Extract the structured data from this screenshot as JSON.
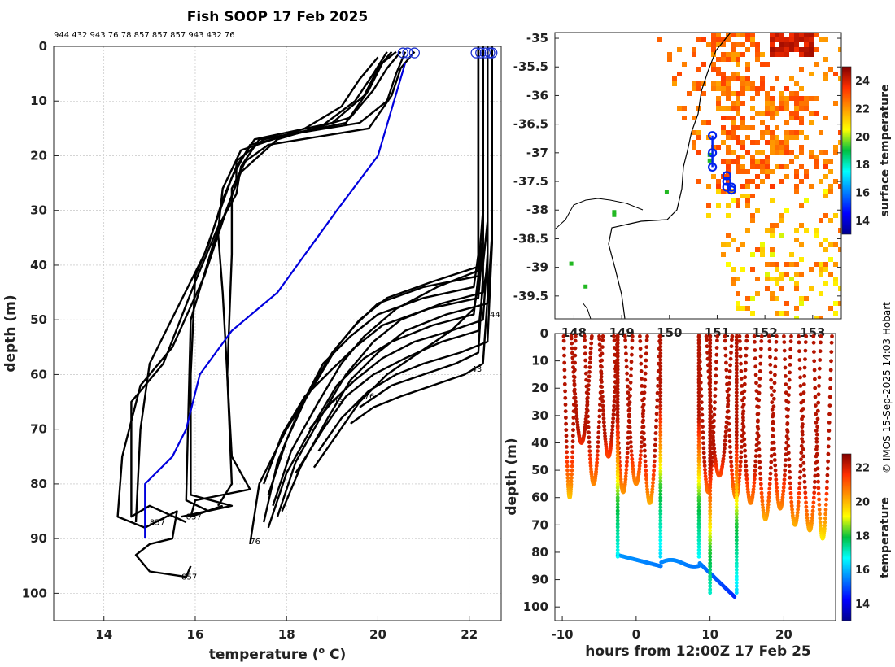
{
  "chart_data": [
    {
      "type": "line",
      "title": "Fish SOOP 17 Feb 2025",
      "top_ids": "944 432 943 76 78 857 857 857 943 432 76",
      "xlabel": "temperature (° C)",
      "xlabel_prefix": "temperature (",
      "xlabel_degree": "o",
      "xlabel_suffix": " C)",
      "ylabel": "depth (m)",
      "xlim": [
        12.9,
        22.7
      ],
      "ylim": [
        105,
        0
      ],
      "xticks": [
        14,
        16,
        18,
        20,
        22
      ],
      "yticks": [
        0,
        10,
        20,
        30,
        40,
        50,
        60,
        70,
        80,
        90,
        100
      ],
      "profile_labels": [
        {
          "text": "857",
          "t": 15.0,
          "d": 87.5
        },
        {
          "text": "857",
          "t": 15.8,
          "d": 86.5
        },
        {
          "text": "857",
          "t": 15.7,
          "d": 97.5
        },
        {
          "text": "76",
          "t": 17.2,
          "d": 91.0
        },
        {
          "text": "943",
          "t": 18.9,
          "d": 65.5
        },
        {
          "text": "76",
          "t": 19.7,
          "d": 64.5
        },
        {
          "text": "43",
          "t": 22.05,
          "d": 59.5
        },
        {
          "text": "44",
          "t": 22.45,
          "d": 49.5
        }
      ],
      "climatology": {
        "name": "climatology",
        "color": "#0000dd",
        "temp": [
          20.6,
          20.0,
          19.1,
          17.8,
          16.8,
          16.1,
          15.8,
          15.5,
          14.9,
          14.9
        ],
        "depth": [
          3,
          20,
          30,
          45,
          52,
          60,
          70,
          75,
          80,
          90
        ]
      },
      "series": [
        {
          "name": "cool-profile-a",
          "temp": [
            20.4,
            20.1,
            19.8,
            19.3,
            17.5,
            16.9,
            16.9,
            16.6,
            16.2,
            15.5,
            14.8,
            14.4,
            14.3,
            14.9,
            15.6,
            15.5,
            15.0,
            14.7,
            15.0,
            15.8,
            15.9
          ],
          "depth": [
            1,
            3,
            8,
            14,
            17,
            21,
            25,
            32,
            42,
            55,
            62,
            75,
            86,
            88,
            85,
            90,
            91,
            93,
            96,
            97,
            95
          ]
        },
        {
          "name": "cool-profile-b",
          "temp": [
            20.6,
            20.4,
            20.2,
            19.6,
            17.4,
            17.0,
            16.9,
            16.5,
            16.0,
            15.3,
            14.6,
            14.6,
            15.0,
            15.8
          ],
          "depth": [
            1,
            5,
            10,
            14,
            17,
            22,
            27,
            33,
            43,
            58,
            65,
            86,
            84,
            87
          ]
        },
        {
          "name": "cool-profile-c",
          "temp": [
            20.8,
            20.5,
            20.3,
            19.8,
            17.6,
            17.1,
            16.8,
            16.8,
            16.7,
            16.8,
            17.2,
            16.0,
            15.9,
            16.6
          ],
          "depth": [
            1,
            4,
            9,
            15,
            18,
            21,
            26,
            38,
            60,
            75,
            81,
            83,
            86,
            84
          ]
        },
        {
          "name": "cool-profile-d",
          "temp": [
            20.3,
            20.0,
            19.7,
            19.0,
            17.3,
            16.9,
            16.6,
            16.3,
            16.0,
            15.9,
            15.9,
            16.8,
            15.7
          ],
          "depth": [
            1,
            4,
            9,
            14,
            17,
            22,
            28,
            36,
            42,
            60,
            82,
            84,
            86
          ]
        },
        {
          "name": "cool-profile-e",
          "temp": [
            20.0,
            19.6,
            19.2,
            18.4,
            17.0,
            16.6,
            16.5,
            16.6,
            16.7,
            16.8,
            16.5
          ],
          "depth": [
            2,
            6,
            11,
            15,
            19,
            26,
            34,
            45,
            60,
            80,
            84
          ]
        },
        {
          "name": "cool-profile-f",
          "temp": [
            20.2,
            19.9,
            19.5,
            18.7,
            17.2,
            16.8,
            16.2,
            15.6,
            15.0,
            14.8,
            14.7
          ],
          "depth": [
            1,
            5,
            10,
            15,
            18,
            24,
            38,
            48,
            58,
            70,
            87
          ]
        },
        {
          "name": "cool-profile-g",
          "temp": [
            20.5,
            20.2,
            19.9,
            19.4,
            17.8,
            17.0,
            16.4,
            15.9,
            15.8,
            16.3
          ],
          "depth": [
            1,
            4,
            8,
            13,
            17,
            23,
            36,
            50,
            83,
            85
          ]
        },
        {
          "name": "warm-profile-a",
          "temp": [
            22.3,
            22.3,
            22.3,
            22.2,
            21.0,
            20.0,
            19.5,
            19.0,
            18.5,
            18.0,
            17.6
          ],
          "depth": [
            0,
            20,
            35,
            42,
            44,
            47,
            51,
            56,
            63,
            72,
            82
          ]
        },
        {
          "name": "warm-profile-b",
          "temp": [
            22.4,
            22.4,
            22.4,
            22.3,
            21.2,
            20.2,
            19.6,
            19.1,
            18.6,
            18.0,
            17.4,
            17.2
          ],
          "depth": [
            0,
            18,
            32,
            40,
            43,
            46,
            50,
            55,
            62,
            70,
            80,
            91
          ]
        },
        {
          "name": "warm-profile-c",
          "temp": [
            22.2,
            22.2,
            22.2,
            22.1,
            21.0,
            20.0,
            19.4,
            18.8,
            18.3,
            17.8,
            17.5
          ],
          "depth": [
            0,
            22,
            38,
            44,
            46,
            49,
            53,
            58,
            66,
            76,
            87
          ]
        },
        {
          "name": "warm-profile-d",
          "temp": [
            22.3,
            22.3,
            22.3,
            22.2,
            21.3,
            20.4,
            19.7,
            19.2,
            18.7,
            18.1,
            17.7
          ],
          "depth": [
            0,
            15,
            30,
            41,
            44,
            48,
            53,
            58,
            65,
            74,
            84
          ]
        },
        {
          "name": "warm-profile-e",
          "temp": [
            22.4,
            22.4,
            22.4,
            22.3,
            21.4,
            20.5,
            19.9,
            19.3,
            18.8,
            18.2,
            17.8
          ],
          "depth": [
            0,
            25,
            40,
            45,
            47,
            50,
            54,
            60,
            67,
            76,
            86
          ]
        },
        {
          "name": "warm-profile-f",
          "temp": [
            22.3,
            22.3,
            22.3,
            22.2,
            21.1,
            20.1,
            19.5,
            19.0,
            18.4,
            17.9,
            17.5
          ],
          "depth": [
            0,
            20,
            36,
            46,
            48,
            51,
            55,
            59,
            64,
            71,
            80
          ]
        },
        {
          "name": "warm-profile-g",
          "temp": [
            22.5,
            22.5,
            22.5,
            22.4,
            21.5,
            20.6,
            20.0,
            19.4,
            18.9,
            18.3,
            17.9
          ],
          "depth": [
            0,
            18,
            34,
            47,
            49,
            52,
            56,
            61,
            68,
            77,
            85
          ]
        },
        {
          "name": "warm-profile-h",
          "temp": [
            22.2,
            22.2,
            22.2,
            22.1,
            21.2,
            20.3,
            19.7,
            19.1,
            18.6,
            18.0,
            17.6
          ],
          "depth": [
            0,
            24,
            42,
            49,
            51,
            54,
            57,
            62,
            69,
            78,
            88
          ]
        },
        {
          "name": "warm-profile-i",
          "temp": [
            22.4,
            22.4,
            22.4,
            22.3,
            21.6,
            20.8,
            20.1,
            19.5,
            19.0,
            18.5
          ],
          "depth": [
            0,
            20,
            38,
            50,
            52,
            54,
            57,
            61,
            65,
            70
          ]
        },
        {
          "name": "warm-profile-j",
          "temp": [
            22.3,
            22.3,
            22.3,
            22.2,
            21.4,
            20.6,
            19.9,
            19.3,
            18.8,
            18.2
          ],
          "depth": [
            0,
            28,
            44,
            52,
            54,
            57,
            60,
            64,
            70,
            78
          ]
        },
        {
          "name": "warm-profile-k",
          "temp": [
            22.5,
            22.5,
            22.5,
            22.4,
            21.8,
            21.0,
            20.4,
            19.8,
            19.2,
            18.7
          ],
          "depth": [
            0,
            22,
            36,
            54,
            56,
            58,
            60,
            63,
            68,
            74
          ]
        },
        {
          "name": "warm-profile-l",
          "temp": [
            22.3,
            22.3,
            22.3,
            22.2,
            21.7,
            21.0,
            20.3,
            19.6
          ],
          "depth": [
            0,
            25,
            42,
            56,
            58,
            60,
            62,
            66
          ]
        },
        {
          "name": "warm-profile-m",
          "temp": [
            22.4,
            22.4,
            22.4,
            22.3,
            21.9,
            21.2,
            20.5,
            19.9,
            19.4
          ],
          "depth": [
            0,
            30,
            46,
            58,
            60,
            62,
            64,
            66,
            69
          ]
        },
        {
          "name": "warm-profile-n",
          "temp": [
            22.2,
            22.2,
            22.2,
            22.1,
            21.6,
            20.9,
            20.2,
            19.6,
            19.1,
            18.6
          ],
          "depth": [
            0,
            26,
            44,
            48,
            52,
            56,
            60,
            65,
            71,
            77
          ]
        }
      ]
    },
    {
      "type": "heatmap",
      "ylim": [
        -39.9,
        -34.9
      ],
      "xlim": [
        147.6,
        153.6
      ],
      "yticks": [
        -35,
        -35.5,
        -36,
        -36.5,
        -37,
        -37.5,
        -38,
        -38.5,
        -39,
        -39.5
      ],
      "ytick_labels": [
        "-35",
        "-35.5",
        "-36",
        "-36.5",
        "-37",
        "-37.5",
        "-38",
        "-38.5",
        "-39",
        "-39.5"
      ],
      "xticks": [
        148,
        149,
        150,
        151,
        152,
        153
      ],
      "xtick_labels": [
        "148",
        "149",
        "150",
        "151",
        "152",
        "153"
      ],
      "colorbar": {
        "label": "surface temperature",
        "min": 13.0,
        "max": 25.0,
        "ticks": [
          14,
          16,
          18,
          20,
          22,
          24
        ]
      },
      "track_points": [
        [
          150.9,
          -36.7
        ],
        [
          150.9,
          -37.0
        ],
        [
          150.9,
          -37.25
        ],
        [
          151.2,
          -37.4
        ],
        [
          151.2,
          -37.5
        ],
        [
          151.3,
          -37.6
        ],
        [
          151.2,
          -37.6
        ],
        [
          151.3,
          -37.65
        ]
      ]
    },
    {
      "type": "scatter",
      "xlabel": "hours from 12:00Z 17 Feb 25",
      "ylabel": "depth (m)",
      "xlim": [
        -11,
        27
      ],
      "ylim": [
        105,
        0
      ],
      "xticks": [
        -10,
        0,
        10,
        20
      ],
      "xtick_labels": [
        "-10",
        "0",
        "10",
        "20"
      ],
      "yticks": [
        0,
        10,
        20,
        30,
        40,
        50,
        60,
        70,
        80,
        90,
        100
      ],
      "colorbar": {
        "label": "temperature",
        "min": 13.0,
        "max": 22.8,
        "ticks": [
          14,
          16,
          18,
          20,
          22
        ]
      }
    }
  ],
  "watermark": "© IMOS 15-Sep-2025 14:03 Hobart"
}
